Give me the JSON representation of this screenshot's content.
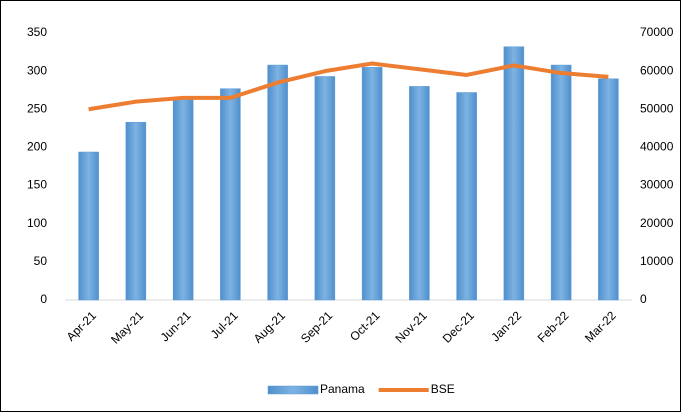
{
  "chart_data": {
    "type": "bar_line",
    "categories": [
      "Apr-21",
      "May-21",
      "Jun-21",
      "Jul-21",
      "Aug-21",
      "Sep-21",
      "Oct-21",
      "Nov-21",
      "Dec-21",
      "Jan-22",
      "Feb-22",
      "Mar-22"
    ],
    "series": [
      {
        "name": "Panama",
        "type": "bar",
        "color": "#5b9bd5",
        "axis": "y",
        "values": [
          194,
          233,
          263,
          277,
          308,
          293,
          305,
          280,
          272,
          332,
          308,
          290
        ]
      },
      {
        "name": "BSE",
        "type": "line",
        "color": "#ed7d31",
        "axis": "y2",
        "values": [
          50000,
          52000,
          53000,
          53000,
          57000,
          60000,
          62000,
          60500,
          59000,
          61500,
          59500,
          58500
        ]
      }
    ],
    "ylim": [
      0,
      350
    ],
    "yticks": [
      0,
      50,
      100,
      150,
      200,
      250,
      300,
      350
    ],
    "y2lim": [
      0,
      70000
    ],
    "y2ticks": [
      0,
      10000,
      20000,
      30000,
      40000,
      50000,
      60000,
      70000
    ],
    "legend": "bottom"
  }
}
